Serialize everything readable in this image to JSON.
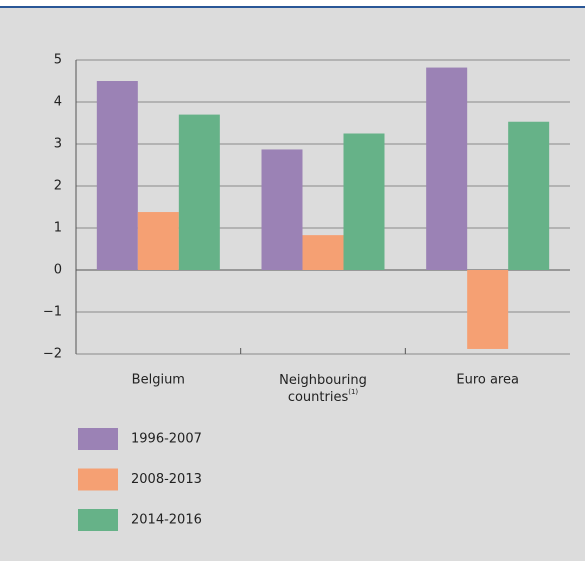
{
  "chart_data": {
    "type": "bar",
    "categories": [
      "Belgium",
      "Neighbouring countries",
      "Euro area"
    ],
    "category_footnotes": [
      null,
      "(1)",
      null
    ],
    "series": [
      {
        "name": "1996-2007",
        "color": "#9b82b5",
        "values": [
          4.5,
          2.87,
          4.82
        ]
      },
      {
        "name": "2008-2013",
        "color": "#f5a073",
        "values": [
          1.38,
          0.83,
          -1.88
        ]
      },
      {
        "name": "2014-2016",
        "color": "#66b288",
        "values": [
          3.7,
          3.25,
          3.53
        ]
      }
    ],
    "ylim": [
      -2,
      5
    ],
    "yticks": [
      {
        "value": -2,
        "label": "−2"
      },
      {
        "value": -1,
        "label": "−1"
      },
      0,
      1,
      2,
      3,
      4,
      5
    ],
    "grid": true,
    "legend": "bottom-left"
  }
}
